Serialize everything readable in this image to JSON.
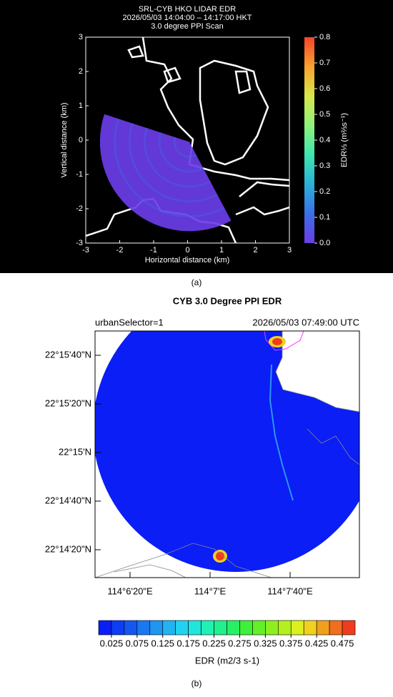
{
  "chart_data": [
    {
      "type": "ppi",
      "title": [
        "SRL-CYB HKO LIDAR EDR",
        "2026/05/03 14:04:00 – 14:17:00 HKT",
        "3.0 degree PPI Scan"
      ],
      "x_label": "Horizontal distance (km)",
      "y_label": "Vertical distance (km)",
      "xlim": [
        -3,
        3
      ],
      "xticks": [
        -3,
        -2,
        -1,
        0,
        1,
        2,
        3
      ],
      "ylim": [
        -3,
        3
      ],
      "yticks": [
        -3,
        -2,
        -1,
        0,
        1,
        2,
        3
      ],
      "colorbar": {
        "label": "EDR⅓ (m⅔s⁻¹)",
        "lim": [
          0,
          0.8
        ],
        "ticks": [
          {
            "value": 0,
            "label": "0.0"
          },
          0.1,
          0.2,
          0.3,
          0.4,
          0.5,
          0.6,
          0.7,
          0.8
        ],
        "colors": [
          "#6a3de8",
          "#3b6fe6",
          "#2bb0d8",
          "#3ee6b0",
          "#8ef27a",
          "#d9e64a",
          "#f9a12e",
          "#f5442a"
        ]
      },
      "caption": "(a)"
    },
    {
      "type": "map",
      "title": "CYB 3.0 Degree PPI EDR",
      "subtitle_left": "urbanSelector=1",
      "subtitle_right": "2026/05/03 07:49:00 UTC",
      "xlim": [
        114.100694,
        114.137401
      ],
      "xticks": [
        {
          "value": 114.105556,
          "label": "114°6'20\"E"
        },
        {
          "value": 114.116667,
          "label": "114°7'E"
        },
        {
          "value": 114.127778,
          "label": "114°7'40\"E"
        }
      ],
      "ylim": [
        22.2357,
        22.26389
      ],
      "yticks": [
        {
          "value": 22.238889,
          "label": "22°14'20\"N"
        },
        {
          "value": 22.244444,
          "label": "22°14'40\"N"
        },
        {
          "value": 22.25,
          "label": "22°15'N"
        },
        {
          "value": 22.255556,
          "label": "22°15'20\"N"
        },
        {
          "value": 22.261111,
          "label": "22°15'40\"N"
        }
      ],
      "colorbar": {
        "label": "EDR (m2/3 s-1)",
        "lim": [
          0,
          0.5
        ],
        "ticks": [
          0.025,
          0.075,
          0.125,
          0.175,
          0.225,
          0.275,
          0.325,
          0.375,
          0.425,
          0.475
        ],
        "colors": [
          "#0a1ef5",
          "#0f3cf5",
          "#1458f0",
          "#1a78f0",
          "#1f96f0",
          "#22b4f0",
          "#22d2f0",
          "#20e6dc",
          "#20f0b4",
          "#22f08c",
          "#28f064",
          "#3cf03c",
          "#64f028",
          "#8cf01e",
          "#b4f01e",
          "#dcf01e",
          "#f0d21e",
          "#f0a01e",
          "#f06e1e",
          "#f03c1e"
        ]
      },
      "caption": "(b)"
    }
  ]
}
